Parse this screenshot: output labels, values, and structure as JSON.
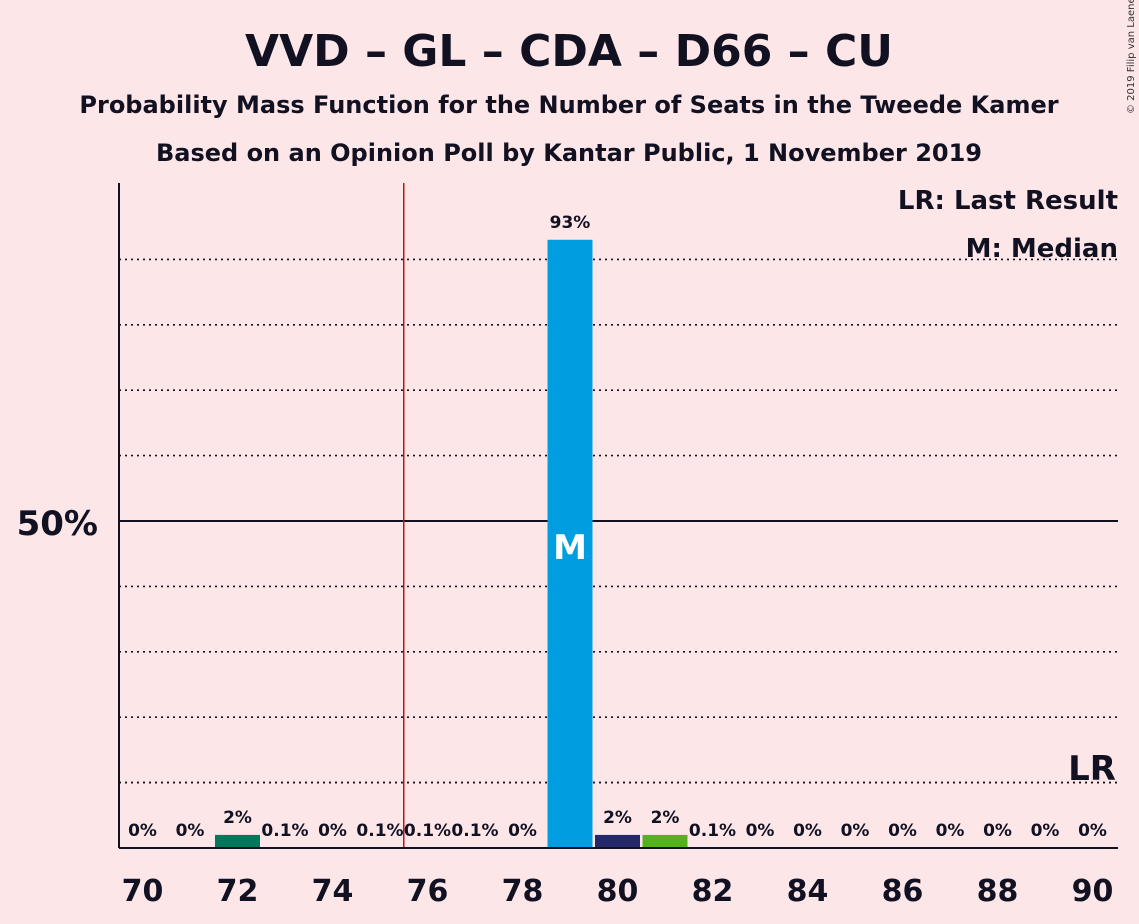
{
  "title": "VVD – GL – CDA – D66 – CU",
  "subtitle1": "Probability Mass Function for the Number of Seats in the Tweede Kamer",
  "subtitle2": "Based on an Opinion Poll by Kantar Public, 1 November 2019",
  "copyright": "© 2019 Filip van Laenen",
  "legend": {
    "last_result": "LR: Last Result",
    "median": "M: Median"
  },
  "lr_marker": "LR",
  "median_marker": "M",
  "y_axis_label": "50%",
  "chart_data": {
    "type": "bar",
    "title": "VVD – GL – CDA – D66 – CU",
    "categories": [
      70,
      71,
      72,
      73,
      74,
      75,
      76,
      77,
      78,
      79,
      80,
      81,
      82,
      83,
      84,
      85,
      86,
      87,
      88,
      89,
      90
    ],
    "x_tick_labels": [
      "70",
      "72",
      "74",
      "76",
      "78",
      "80",
      "82",
      "84",
      "86",
      "88",
      "90"
    ],
    "values": [
      0,
      0,
      2,
      0.1,
      0,
      0.1,
      0.1,
      0.1,
      0,
      93,
      2,
      2,
      0.1,
      0,
      0,
      0,
      0,
      0,
      0,
      0,
      0
    ],
    "value_labels": [
      "0%",
      "0%",
      "2%",
      "0.1%",
      "0%",
      "0.1%",
      "0.1%",
      "0.1%",
      "0%",
      "93%",
      "2%",
      "2%",
      "0.1%",
      "0%",
      "0%",
      "0%",
      "0%",
      "0%",
      "0%",
      "0%",
      "0%"
    ],
    "bar_colors": {
      "72": "#00785a",
      "79": "#009ee0",
      "80": "#24296b",
      "81": "#53b319"
    },
    "majority_line": 75.5,
    "majority_line_color": "#c0111a",
    "median_seat": 79,
    "last_result_level": 10,
    "ylim": [
      0,
      100
    ],
    "gridlines": [
      10,
      20,
      30,
      40,
      60,
      70,
      80,
      90
    ],
    "highlight_line": 50
  }
}
